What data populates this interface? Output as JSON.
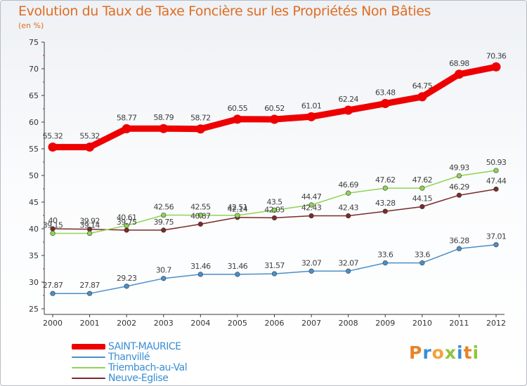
{
  "title": "Evolution du Taux de Taxe Foncière sur les Propriétés Non Bâties",
  "unit_label": "(en %)",
  "colors": {
    "title": "#e06d22",
    "axis": "#3b3b3b",
    "grid_tick": "#cc2200",
    "legend_text": "#3a8ed2"
  },
  "logo": {
    "letters": [
      "P",
      "r",
      "o",
      "x",
      "i",
      "t",
      "i"
    ],
    "letter_colors": [
      "#e8832a",
      "#3a8ed2",
      "#f2a33b",
      "#8fc53a",
      "#3a8ed2",
      "#e8832a",
      "#8fc53a"
    ]
  },
  "chart_data": {
    "type": "line",
    "x": [
      "2000",
      "2001",
      "2002",
      "2003",
      "2004",
      "2005",
      "2006",
      "2007",
      "2008",
      "2009",
      "2010",
      "2011",
      "2012"
    ],
    "ylim": [
      25,
      75
    ],
    "yticks": [
      "25",
      "30",
      "35",
      "40",
      "45",
      "50",
      "55",
      "60",
      "65",
      "70",
      "75"
    ],
    "legend_position": "bottom-left",
    "series": [
      {
        "name": "SAINT-MAURICE",
        "color": "#ee0000",
        "values": [
          55.32,
          55.32,
          58.77,
          58.79,
          58.72,
          60.55,
          60.52,
          61.01,
          62.24,
          63.48,
          64.75,
          68.98,
          70.36
        ],
        "labels": [
          "55.32",
          "55.32",
          "58.77",
          "58.79",
          "58.72",
          "60.55",
          "60.52",
          "61.01",
          "62.24",
          "63.48",
          "64.75",
          "68.98",
          "70.36"
        ]
      },
      {
        "name": "Thanvillé",
        "color": "#4a8fc9",
        "values": [
          27.87,
          27.87,
          29.23,
          30.7,
          31.46,
          31.46,
          31.57,
          32.07,
          32.07,
          33.6,
          33.6,
          36.28,
          37.01
        ],
        "labels": [
          "27.87",
          "27.87",
          "29.23",
          "30.7",
          "31.46",
          "31.46",
          "31.57",
          "32.07",
          "32.07",
          "33.6",
          "33.6",
          "36.28",
          "37.01"
        ]
      },
      {
        "name": "Triembach-au-Val",
        "color": "#8fd452",
        "values": [
          39.15,
          39.14,
          40.61,
          42.56,
          42.55,
          42.51,
          43.5,
          44.47,
          46.69,
          47.62,
          47.62,
          49.93,
          50.93
        ],
        "labels": [
          "39.15",
          "39.14",
          "40.61",
          "42.56",
          "42.55",
          "42.51",
          "43.5",
          "44.47",
          "46.69",
          "47.62",
          "47.62",
          "49.93",
          "50.93"
        ]
      },
      {
        "name": "Neuve-Eglise",
        "color": "#7a2a2a",
        "values": [
          40,
          39.92,
          39.75,
          39.75,
          40.87,
          42.14,
          42.05,
          42.43,
          42.43,
          43.28,
          44.15,
          46.29,
          47.44
        ],
        "labels": [
          "40",
          "39.92",
          "39.75",
          "39.75",
          "40.87",
          "42.14",
          "42.05",
          "42.43",
          "42.43",
          "43.28",
          "44.15",
          "46.29",
          "47.44"
        ]
      }
    ]
  }
}
